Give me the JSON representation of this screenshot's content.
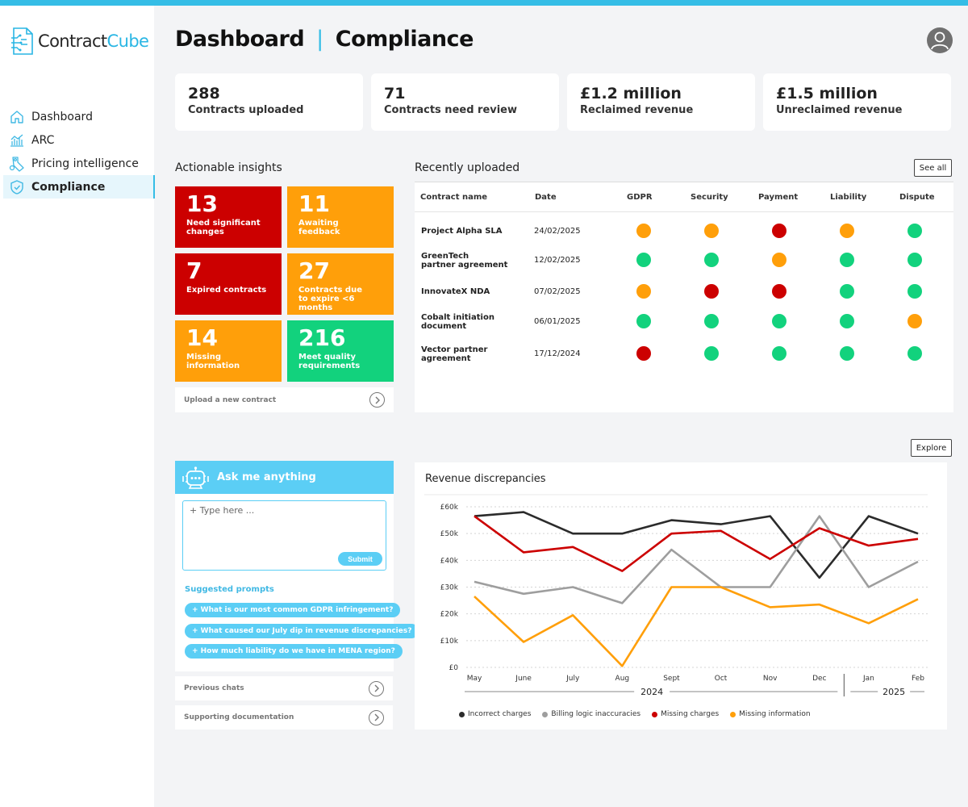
{
  "brand": {
    "name_part1": "Contract",
    "name_part2": "Cube",
    "accent": "#35bde6"
  },
  "sidebar": {
    "items": [
      {
        "label": "Dashboard",
        "icon": "home-icon"
      },
      {
        "label": "ARC",
        "icon": "bar-chart-icon"
      },
      {
        "label": "Pricing intelligence",
        "icon": "price-tag-icon"
      },
      {
        "label": "Compliance",
        "icon": "shield-icon",
        "active": true
      }
    ]
  },
  "header": {
    "title": "Dashboard",
    "separator": "|",
    "subtitle": "Compliance"
  },
  "stats": [
    {
      "value": "288",
      "label": "Contracts uploaded"
    },
    {
      "value": "71",
      "label": "Contracts need review"
    },
    {
      "value": "£1.2 million",
      "label": "Reclaimed revenue"
    },
    {
      "value": "£1.5 million",
      "label": "Unreclaimed revenue"
    }
  ],
  "insights": {
    "title": "Actionable insights",
    "tiles": [
      {
        "value": "13",
        "label": "Need significant\nchanges",
        "color": "red"
      },
      {
        "value": "11",
        "label": "Awaiting feedback",
        "color": "orange"
      },
      {
        "value": "7",
        "label": "Expired contracts",
        "color": "red"
      },
      {
        "value": "27",
        "label": "Contracts due\nto expire <6 months",
        "color": "orange"
      },
      {
        "value": "14",
        "label": "Missing\ninformation",
        "color": "orange"
      },
      {
        "value": "216",
        "label": "Meet quality\nrequirements",
        "color": "green"
      }
    ],
    "upload_label": "Upload a new contract"
  },
  "recent": {
    "title": "Recently uploaded",
    "see_all": "See all",
    "columns": [
      "Contract name",
      "Date",
      "GDPR",
      "Security",
      "Payment",
      "Liability",
      "Dispute"
    ],
    "status_colors": {
      "red": "#cc0000",
      "orange": "#ff9f0a",
      "green": "#12d27d"
    },
    "rows": [
      {
        "name": "Project Alpha SLA",
        "date": "24/02/2025",
        "statuses": [
          "orange",
          "orange",
          "red",
          "orange",
          "green"
        ]
      },
      {
        "name": "GreenTech\npartner agreement",
        "date": "12/02/2025",
        "statuses": [
          "green",
          "green",
          "orange",
          "green",
          "green"
        ]
      },
      {
        "name": "InnovateX NDA",
        "date": "07/02/2025",
        "statuses": [
          "orange",
          "red",
          "red",
          "green",
          "green"
        ]
      },
      {
        "name": "Cobalt initiation\ndocument",
        "date": "06/01/2025",
        "statuses": [
          "green",
          "green",
          "green",
          "green",
          "orange"
        ]
      },
      {
        "name": "Vector partner\nagreement",
        "date": "17/12/2024",
        "statuses": [
          "red",
          "green",
          "green",
          "green",
          "green"
        ]
      }
    ]
  },
  "ask": {
    "title": "Ask me anything",
    "placeholder": "+ Type here ...",
    "submit": "Submit",
    "suggested_title": "Suggested prompts",
    "prompts": [
      "+ What is our most common GDPR infringement?",
      "+ What caused our July dip in revenue discrepancies?",
      "+ How much liability do we have in MENA region?"
    ],
    "previous_chats": "Previous chats",
    "supporting_docs": "Supporting documentation"
  },
  "explore": "Explore",
  "chart_data": {
    "type": "line",
    "title": "Revenue discrepancies",
    "x": [
      "May",
      "June",
      "July",
      "Aug",
      "Sept",
      "Oct",
      "Nov",
      "Dec",
      "Jan",
      "Feb"
    ],
    "year_groups": [
      {
        "label": "2024",
        "from": 0,
        "to": 7
      },
      {
        "label": "2025",
        "from": 8,
        "to": 9
      }
    ],
    "y_ticks": [
      "£0",
      "£10k",
      "£20k",
      "£30k",
      "£40k",
      "£50k",
      "£60k"
    ],
    "ylim": [
      0,
      60
    ],
    "grid": true,
    "legend_position": "bottom",
    "series": [
      {
        "name": "Incorrect charges",
        "color": "#2b2b2b",
        "values": [
          56.5,
          58,
          50,
          50,
          55,
          53.5,
          56.5,
          33.5,
          56.5,
          50
        ]
      },
      {
        "name": "Billing logic inaccuracies",
        "color": "#9e9e9e",
        "values": [
          32,
          27.5,
          30,
          24,
          44,
          30,
          30,
          56.5,
          30,
          39.5
        ]
      },
      {
        "name": "Missing charges",
        "color": "#cc0000",
        "values": [
          56.5,
          43,
          45,
          36,
          50,
          51,
          40.5,
          52,
          45.5,
          48
        ]
      },
      {
        "name": "Missing information",
        "color": "#ff9f0a",
        "values": [
          26.5,
          9.5,
          19.5,
          0.5,
          30,
          30,
          22.5,
          23.5,
          16.5,
          25.5
        ]
      }
    ]
  }
}
